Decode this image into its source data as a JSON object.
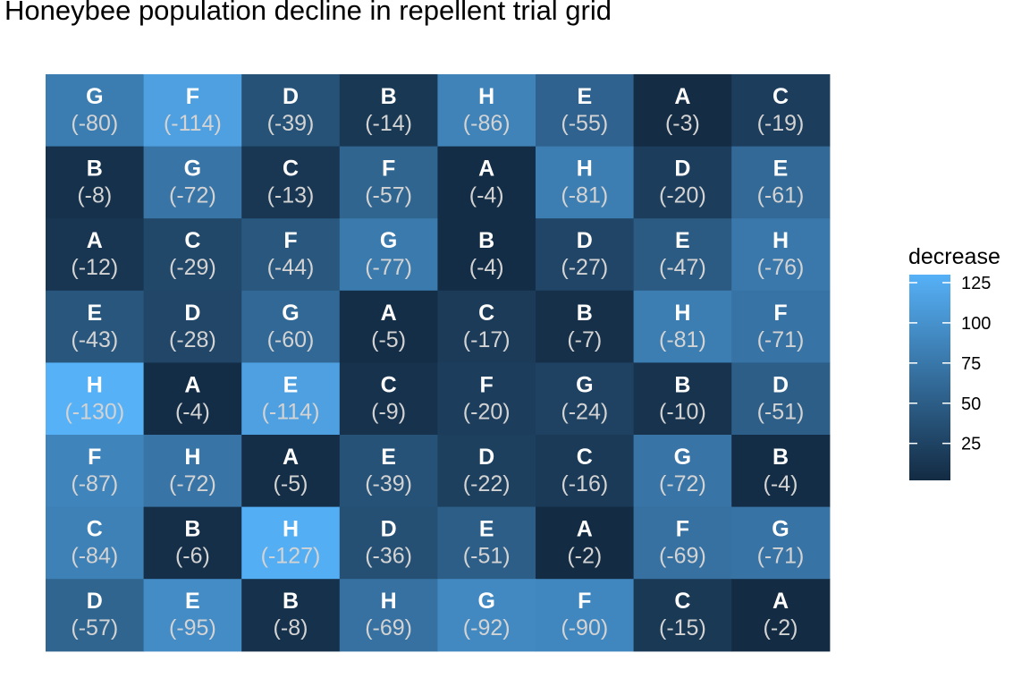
{
  "chart_data": {
    "type": "heatmap",
    "title": "Honeybee population decline in repellent trial grid",
    "xlabel": "",
    "ylabel": "",
    "legend": {
      "title": "decrease",
      "ticks": [
        25,
        50,
        75,
        100,
        125
      ],
      "tick_labels": [
        "25",
        "50",
        "75",
        "100",
        "125"
      ],
      "range": [
        2,
        130
      ],
      "placement": "right",
      "low_color": "#132B43",
      "high_color": "#56B1F7"
    },
    "grid": false,
    "n_rows": 8,
    "n_cols": 8,
    "rows": [
      [
        {
          "treatment": "G",
          "decrease": 80,
          "label": "(-80)"
        },
        {
          "treatment": "F",
          "decrease": 114,
          "label": "(-114)"
        },
        {
          "treatment": "D",
          "decrease": 39,
          "label": "(-39)"
        },
        {
          "treatment": "B",
          "decrease": 14,
          "label": "(-14)"
        },
        {
          "treatment": "H",
          "decrease": 86,
          "label": "(-86)"
        },
        {
          "treatment": "E",
          "decrease": 55,
          "label": "(-55)"
        },
        {
          "treatment": "A",
          "decrease": 3,
          "label": "(-3)"
        },
        {
          "treatment": "C",
          "decrease": 19,
          "label": "(-19)"
        }
      ],
      [
        {
          "treatment": "B",
          "decrease": 8,
          "label": "(-8)"
        },
        {
          "treatment": "G",
          "decrease": 72,
          "label": "(-72)"
        },
        {
          "treatment": "C",
          "decrease": 13,
          "label": "(-13)"
        },
        {
          "treatment": "F",
          "decrease": 57,
          "label": "(-57)"
        },
        {
          "treatment": "A",
          "decrease": 4,
          "label": "(-4)"
        },
        {
          "treatment": "H",
          "decrease": 81,
          "label": "(-81)"
        },
        {
          "treatment": "D",
          "decrease": 20,
          "label": "(-20)"
        },
        {
          "treatment": "E",
          "decrease": 61,
          "label": "(-61)"
        }
      ],
      [
        {
          "treatment": "A",
          "decrease": 12,
          "label": "(-12)"
        },
        {
          "treatment": "C",
          "decrease": 29,
          "label": "(-29)"
        },
        {
          "treatment": "F",
          "decrease": 44,
          "label": "(-44)"
        },
        {
          "treatment": "G",
          "decrease": 77,
          "label": "(-77)"
        },
        {
          "treatment": "B",
          "decrease": 4,
          "label": "(-4)"
        },
        {
          "treatment": "D",
          "decrease": 27,
          "label": "(-27)"
        },
        {
          "treatment": "E",
          "decrease": 47,
          "label": "(-47)"
        },
        {
          "treatment": "H",
          "decrease": 76,
          "label": "(-76)"
        }
      ],
      [
        {
          "treatment": "E",
          "decrease": 43,
          "label": "(-43)"
        },
        {
          "treatment": "D",
          "decrease": 28,
          "label": "(-28)"
        },
        {
          "treatment": "G",
          "decrease": 60,
          "label": "(-60)"
        },
        {
          "treatment": "A",
          "decrease": 5,
          "label": "(-5)"
        },
        {
          "treatment": "C",
          "decrease": 17,
          "label": "(-17)"
        },
        {
          "treatment": "B",
          "decrease": 7,
          "label": "(-7)"
        },
        {
          "treatment": "H",
          "decrease": 81,
          "label": "(-81)"
        },
        {
          "treatment": "F",
          "decrease": 71,
          "label": "(-71)"
        }
      ],
      [
        {
          "treatment": "H",
          "decrease": 130,
          "label": "(-130)"
        },
        {
          "treatment": "A",
          "decrease": 4,
          "label": "(-4)"
        },
        {
          "treatment": "E",
          "decrease": 114,
          "label": "(-114)"
        },
        {
          "treatment": "C",
          "decrease": 9,
          "label": "(-9)"
        },
        {
          "treatment": "F",
          "decrease": 20,
          "label": "(-20)"
        },
        {
          "treatment": "G",
          "decrease": 24,
          "label": "(-24)"
        },
        {
          "treatment": "B",
          "decrease": 10,
          "label": "(-10)"
        },
        {
          "treatment": "D",
          "decrease": 51,
          "label": "(-51)"
        }
      ],
      [
        {
          "treatment": "F",
          "decrease": 87,
          "label": "(-87)"
        },
        {
          "treatment": "H",
          "decrease": 72,
          "label": "(-72)"
        },
        {
          "treatment": "A",
          "decrease": 5,
          "label": "(-5)"
        },
        {
          "treatment": "E",
          "decrease": 39,
          "label": "(-39)"
        },
        {
          "treatment": "D",
          "decrease": 22,
          "label": "(-22)"
        },
        {
          "treatment": "C",
          "decrease": 16,
          "label": "(-16)"
        },
        {
          "treatment": "G",
          "decrease": 72,
          "label": "(-72)"
        },
        {
          "treatment": "B",
          "decrease": 4,
          "label": "(-4)"
        }
      ],
      [
        {
          "treatment": "C",
          "decrease": 84,
          "label": "(-84)"
        },
        {
          "treatment": "B",
          "decrease": 6,
          "label": "(-6)"
        },
        {
          "treatment": "H",
          "decrease": 127,
          "label": "(-127)"
        },
        {
          "treatment": "D",
          "decrease": 36,
          "label": "(-36)"
        },
        {
          "treatment": "E",
          "decrease": 51,
          "label": "(-51)"
        },
        {
          "treatment": "A",
          "decrease": 2,
          "label": "(-2)"
        },
        {
          "treatment": "F",
          "decrease": 69,
          "label": "(-69)"
        },
        {
          "treatment": "G",
          "decrease": 71,
          "label": "(-71)"
        }
      ],
      [
        {
          "treatment": "D",
          "decrease": 57,
          "label": "(-57)"
        },
        {
          "treatment": "E",
          "decrease": 95,
          "label": "(-95)"
        },
        {
          "treatment": "B",
          "decrease": 8,
          "label": "(-8)"
        },
        {
          "treatment": "H",
          "decrease": 69,
          "label": "(-69)"
        },
        {
          "treatment": "G",
          "decrease": 92,
          "label": "(-92)"
        },
        {
          "treatment": "F",
          "decrease": 90,
          "label": "(-90)"
        },
        {
          "treatment": "C",
          "decrease": 15,
          "label": "(-15)"
        },
        {
          "treatment": "A",
          "decrease": 2,
          "label": "(-2)"
        }
      ]
    ]
  }
}
